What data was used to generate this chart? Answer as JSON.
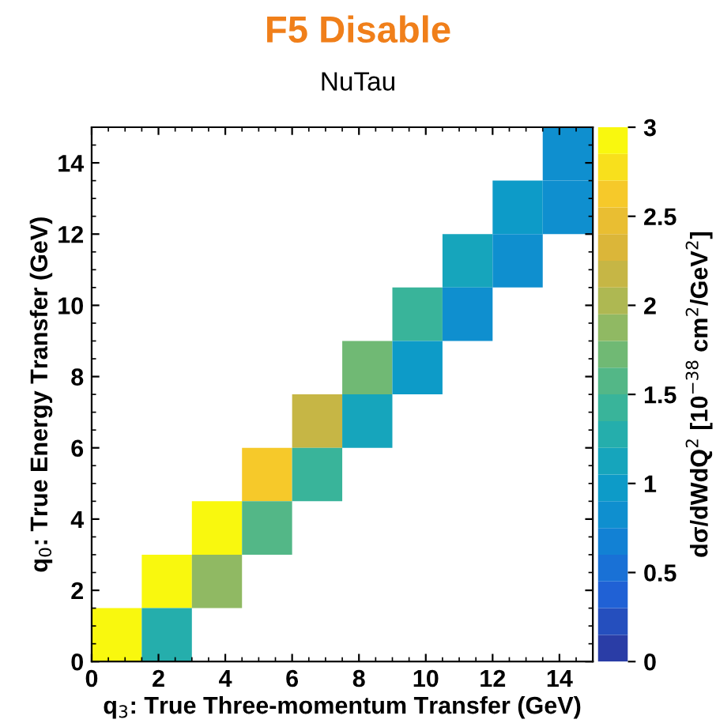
{
  "chart_data": {
    "type": "heatmap",
    "title": "F5 Disable",
    "subtitle": "NuTau",
    "xlabel": "q$_{3}$: True Three-momentum Transfer (GeV)",
    "ylabel": "q$_{0}$: True Energy Transfer (GeV)",
    "clabel": "dσ/dWdQ$^{2}$ [10$^{−38}$ cm$^{2}$/GeV$^{2}$]",
    "x": [
      0.75,
      2.25,
      3.75,
      5.25,
      6.75,
      8.25,
      9.75,
      11.25,
      12.75,
      14.25
    ],
    "y": [
      14.25,
      12.75,
      11.25,
      9.75,
      8.25,
      6.75,
      5.25,
      3.75,
      2.25,
      0.75
    ],
    "cells": [
      [
        null,
        null,
        null,
        null,
        null,
        null,
        null,
        null,
        null,
        0.75
      ],
      [
        null,
        null,
        null,
        null,
        null,
        null,
        null,
        null,
        1.0,
        0.75
      ],
      [
        null,
        null,
        null,
        null,
        null,
        null,
        null,
        1.2,
        0.75,
        null
      ],
      [
        null,
        null,
        null,
        null,
        null,
        null,
        1.35,
        0.85,
        null,
        null
      ],
      [
        null,
        null,
        null,
        null,
        null,
        1.7,
        0.95,
        null,
        null,
        null
      ],
      [
        null,
        null,
        null,
        null,
        2.2,
        1.1,
        null,
        null,
        null,
        null
      ],
      [
        null,
        null,
        null,
        2.6,
        1.45,
        null,
        null,
        null,
        null,
        null
      ],
      [
        null,
        null,
        3.0,
        1.6,
        null,
        null,
        null,
        null,
        null,
        null
      ],
      [
        null,
        3.0,
        1.8,
        null,
        null,
        null,
        null,
        null,
        null,
        null
      ],
      [
        3.0,
        1.3,
        null,
        null,
        null,
        null,
        null,
        null,
        null,
        null
      ]
    ],
    "xlim": [
      0,
      15
    ],
    "ylim": [
      0,
      15
    ],
    "xticks": [
      0,
      2,
      4,
      6,
      8,
      10,
      12,
      14
    ],
    "yticks": [
      0,
      2,
      4,
      6,
      8,
      10,
      12,
      14
    ],
    "clim": [
      0,
      3
    ],
    "cticks": [
      0,
      0.5,
      1,
      1.5,
      2,
      2.5,
      3
    ]
  }
}
